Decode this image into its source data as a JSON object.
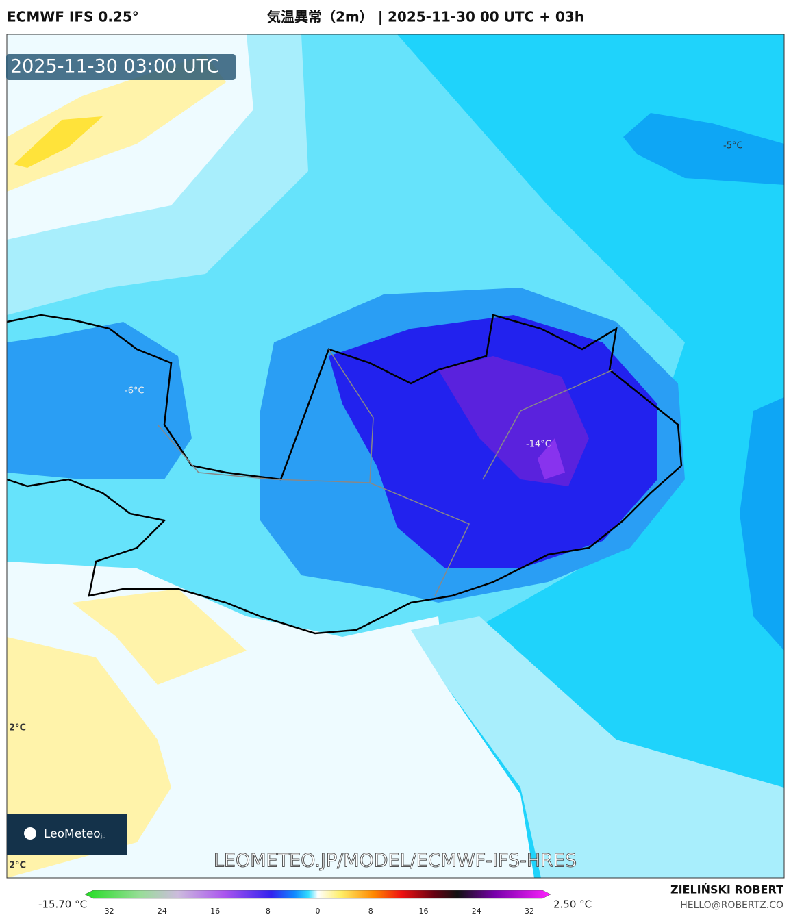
{
  "header": {
    "model": "ECMWF IFS 0.25°",
    "title": "気温異常（2m） | 2025-11-30 00 UTC + 03h"
  },
  "timestamp": "2025-11-30 03:00 UTC",
  "contour_labels": [
    "-5°C",
    "-6°C",
    "-14°C",
    "2°C",
    "2°C"
  ],
  "logo": {
    "name": "LeoMeteo",
    "suffix": "jp"
  },
  "watermark": "LEOMETEO.JP/MODEL/ECMWF-IFS-HRES",
  "colorbar": {
    "min_label": "-15.70 °C",
    "max_label": "2.50 °C",
    "ticks": [
      "−32",
      "−24",
      "−16",
      "−8",
      "0",
      "8",
      "16",
      "24",
      "32"
    ]
  },
  "footer": {
    "author": "ZIELIŃSKI ROBERT",
    "email": "HELLO@ROBERTZ.CO"
  }
}
